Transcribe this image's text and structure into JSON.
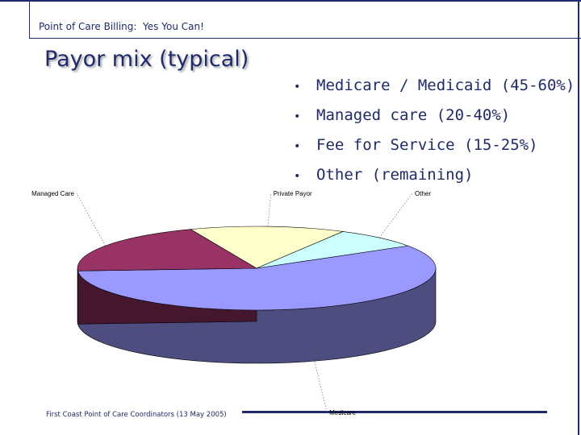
{
  "header": {
    "text": "Point of Care Billing:  Yes You Can!"
  },
  "title": "Payor mix (typical)",
  "bullets": [
    {
      "text": "Medicare / Medicaid (45-60%)"
    },
    {
      "text": "Managed care (20-40%)"
    },
    {
      "text": "Fee for Service (15-25%)"
    },
    {
      "text": "Other (remaining)"
    }
  ],
  "bullet_glyph": "•",
  "footer": {
    "text": "First Coast Point of Care Coordinators (13 May 2005)"
  },
  "chart_data": {
    "type": "pie",
    "style": "3d",
    "title": "",
    "legend": "none",
    "slices": [
      {
        "label": "Medicare",
        "value": 58,
        "color": "#9999ff"
      },
      {
        "label": "Managed Care",
        "value": 20,
        "color": "#993366"
      },
      {
        "label": "Private Payor",
        "value": 14,
        "color": "#ffffcc"
      },
      {
        "label": "Other",
        "value": 8,
        "color": "#ccffff"
      }
    ]
  },
  "colors": {
    "text": "#1f2a6e",
    "frame": "#1f2a6e"
  }
}
